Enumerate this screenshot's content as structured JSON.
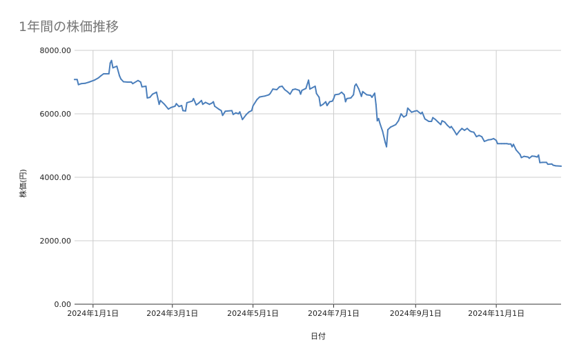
{
  "chart_data": {
    "type": "line",
    "title": "1年間の株価推移",
    "xlabel": "日付",
    "ylabel": "株価(円)",
    "ylim": [
      0,
      8000
    ],
    "yticks": [
      "0.00",
      "2000.00",
      "4000.00",
      "6000.00",
      "8000.00"
    ],
    "xlim": [
      "2023-12-18",
      "2024-12-20"
    ],
    "xticks": [
      {
        "date": "2024-01-01",
        "label": "2024年1月1日"
      },
      {
        "date": "2024-03-01",
        "label": "2024年3月1日"
      },
      {
        "date": "2024-05-01",
        "label": "2024年5月1日"
      },
      {
        "date": "2024-07-01",
        "label": "2024年7月1日"
      },
      {
        "date": "2024-09-01",
        "label": "2024年9月1日"
      },
      {
        "date": "2024-11-01",
        "label": "2024年11月1日"
      }
    ],
    "grid": true,
    "line_color": "#4a7ebb",
    "series": [
      {
        "name": "",
        "points": [
          [
            "2023-12-18",
            7080
          ],
          [
            "2023-12-20",
            7080
          ],
          [
            "2023-12-21",
            6920
          ],
          [
            "2023-12-23",
            6950
          ],
          [
            "2023-12-26",
            6960
          ],
          [
            "2023-12-29",
            7000
          ],
          [
            "2024-01-02",
            7060
          ],
          [
            "2024-01-05",
            7130
          ],
          [
            "2024-01-07",
            7200
          ],
          [
            "2024-01-09",
            7260
          ],
          [
            "2024-01-13",
            7260
          ],
          [
            "2024-01-14",
            7600
          ],
          [
            "2024-01-15",
            7680
          ],
          [
            "2024-01-16",
            7450
          ],
          [
            "2024-01-19",
            7500
          ],
          [
            "2024-01-21",
            7200
          ],
          [
            "2024-01-22",
            7100
          ],
          [
            "2024-01-24",
            7010
          ],
          [
            "2024-01-27",
            7000
          ],
          [
            "2024-01-30",
            7000
          ],
          [
            "2024-01-31",
            6950
          ],
          [
            "2024-02-04",
            7050
          ],
          [
            "2024-02-06",
            7000
          ],
          [
            "2024-02-07",
            6850
          ],
          [
            "2024-02-10",
            6870
          ],
          [
            "2024-02-11",
            6500
          ],
          [
            "2024-02-13",
            6520
          ],
          [
            "2024-02-15",
            6620
          ],
          [
            "2024-02-18",
            6680
          ],
          [
            "2024-02-20",
            6300
          ],
          [
            "2024-02-21",
            6420
          ],
          [
            "2024-02-24",
            6300
          ],
          [
            "2024-02-27",
            6150
          ],
          [
            "2024-02-29",
            6200
          ],
          [
            "2024-03-03",
            6240
          ],
          [
            "2024-03-04",
            6320
          ],
          [
            "2024-03-06",
            6230
          ],
          [
            "2024-03-08",
            6260
          ],
          [
            "2024-03-09",
            6100
          ],
          [
            "2024-03-11",
            6090
          ],
          [
            "2024-03-12",
            6350
          ],
          [
            "2024-03-16",
            6400
          ],
          [
            "2024-03-17",
            6480
          ],
          [
            "2024-03-19",
            6280
          ],
          [
            "2024-03-21",
            6340
          ],
          [
            "2024-03-23",
            6420
          ],
          [
            "2024-03-24",
            6300
          ],
          [
            "2024-03-26",
            6360
          ],
          [
            "2024-03-29",
            6300
          ],
          [
            "2024-03-31",
            6340
          ],
          [
            "2024-04-01",
            6380
          ],
          [
            "2024-04-02",
            6240
          ],
          [
            "2024-04-05",
            6150
          ],
          [
            "2024-04-07",
            6100
          ],
          [
            "2024-04-08",
            5950
          ],
          [
            "2024-04-10",
            6080
          ],
          [
            "2024-04-15",
            6100
          ],
          [
            "2024-04-16",
            5980
          ],
          [
            "2024-04-18",
            6030
          ],
          [
            "2024-04-20",
            6000
          ],
          [
            "2024-04-21",
            6060
          ],
          [
            "2024-04-23",
            5820
          ],
          [
            "2024-04-26",
            5980
          ],
          [
            "2024-04-28",
            6060
          ],
          [
            "2024-04-30",
            6100
          ],
          [
            "2024-05-01",
            6250
          ],
          [
            "2024-05-04",
            6450
          ],
          [
            "2024-05-06",
            6530
          ],
          [
            "2024-05-10",
            6560
          ],
          [
            "2024-05-13",
            6600
          ],
          [
            "2024-05-14",
            6640
          ],
          [
            "2024-05-16",
            6780
          ],
          [
            "2024-05-19",
            6760
          ],
          [
            "2024-05-21",
            6850
          ],
          [
            "2024-05-23",
            6870
          ],
          [
            "2024-05-25",
            6760
          ],
          [
            "2024-05-27",
            6700
          ],
          [
            "2024-05-29",
            6620
          ],
          [
            "2024-05-31",
            6760
          ],
          [
            "2024-06-02",
            6780
          ],
          [
            "2024-06-05",
            6740
          ],
          [
            "2024-06-06",
            6620
          ],
          [
            "2024-06-07",
            6740
          ],
          [
            "2024-06-10",
            6800
          ],
          [
            "2024-06-12",
            7060
          ],
          [
            "2024-06-13",
            6780
          ],
          [
            "2024-06-17",
            6870
          ],
          [
            "2024-06-18",
            6640
          ],
          [
            "2024-06-20",
            6520
          ],
          [
            "2024-06-21",
            6250
          ],
          [
            "2024-06-23",
            6300
          ],
          [
            "2024-06-25",
            6380
          ],
          [
            "2024-06-26",
            6260
          ],
          [
            "2024-06-28",
            6380
          ],
          [
            "2024-06-30",
            6400
          ],
          [
            "2024-07-01",
            6480
          ],
          [
            "2024-07-02",
            6600
          ],
          [
            "2024-07-05",
            6620
          ],
          [
            "2024-07-07",
            6680
          ],
          [
            "2024-07-09",
            6600
          ],
          [
            "2024-07-10",
            6380
          ],
          [
            "2024-07-11",
            6480
          ],
          [
            "2024-07-14",
            6500
          ],
          [
            "2024-07-16",
            6600
          ],
          [
            "2024-07-17",
            6880
          ],
          [
            "2024-07-18",
            6940
          ],
          [
            "2024-07-20",
            6780
          ],
          [
            "2024-07-22",
            6550
          ],
          [
            "2024-07-23",
            6700
          ],
          [
            "2024-07-26",
            6600
          ],
          [
            "2024-07-29",
            6580
          ],
          [
            "2024-07-30",
            6520
          ],
          [
            "2024-08-01",
            6650
          ],
          [
            "2024-08-02",
            6300
          ],
          [
            "2024-08-03",
            5780
          ],
          [
            "2024-08-04",
            5850
          ],
          [
            "2024-08-05",
            5700
          ],
          [
            "2024-08-07",
            5450
          ],
          [
            "2024-08-09",
            5100
          ],
          [
            "2024-08-10",
            4960
          ],
          [
            "2024-08-11",
            5500
          ],
          [
            "2024-08-13",
            5580
          ],
          [
            "2024-08-15",
            5620
          ],
          [
            "2024-08-17",
            5660
          ],
          [
            "2024-08-19",
            5780
          ],
          [
            "2024-08-21",
            6000
          ],
          [
            "2024-08-23",
            5900
          ],
          [
            "2024-08-25",
            5950
          ],
          [
            "2024-08-26",
            6180
          ],
          [
            "2024-08-29",
            6050
          ],
          [
            "2024-08-31",
            6080
          ],
          [
            "2024-09-02",
            6100
          ],
          [
            "2024-09-05",
            6000
          ],
          [
            "2024-09-06",
            6050
          ],
          [
            "2024-09-08",
            5840
          ],
          [
            "2024-09-11",
            5760
          ],
          [
            "2024-09-13",
            5760
          ],
          [
            "2024-09-14",
            5880
          ],
          [
            "2024-09-16",
            5820
          ],
          [
            "2024-09-18",
            5740
          ],
          [
            "2024-09-20",
            5660
          ],
          [
            "2024-09-21",
            5780
          ],
          [
            "2024-09-23",
            5740
          ],
          [
            "2024-09-25",
            5640
          ],
          [
            "2024-09-27",
            5560
          ],
          [
            "2024-09-28",
            5600
          ],
          [
            "2024-09-30",
            5480
          ],
          [
            "2024-10-02",
            5340
          ],
          [
            "2024-10-04",
            5450
          ],
          [
            "2024-10-06",
            5540
          ],
          [
            "2024-10-08",
            5480
          ],
          [
            "2024-10-10",
            5540
          ],
          [
            "2024-10-12",
            5460
          ],
          [
            "2024-10-13",
            5440
          ],
          [
            "2024-10-15",
            5420
          ],
          [
            "2024-10-17",
            5280
          ],
          [
            "2024-10-19",
            5320
          ],
          [
            "2024-10-21",
            5280
          ],
          [
            "2024-10-23",
            5130
          ],
          [
            "2024-10-26",
            5180
          ],
          [
            "2024-10-28",
            5190
          ],
          [
            "2024-10-30",
            5220
          ],
          [
            "2024-11-01",
            5160
          ],
          [
            "2024-11-02",
            5060
          ],
          [
            "2024-11-05",
            5060
          ],
          [
            "2024-11-07",
            5060
          ],
          [
            "2024-11-09",
            5060
          ],
          [
            "2024-11-10",
            5050
          ],
          [
            "2024-11-12",
            5050
          ],
          [
            "2024-11-13",
            4960
          ],
          [
            "2024-11-14",
            5040
          ],
          [
            "2024-11-16",
            4860
          ],
          [
            "2024-11-19",
            4720
          ],
          [
            "2024-11-20",
            4620
          ],
          [
            "2024-11-22",
            4660
          ],
          [
            "2024-11-25",
            4640
          ],
          [
            "2024-11-26",
            4600
          ],
          [
            "2024-11-28",
            4670
          ],
          [
            "2024-11-30",
            4660
          ],
          [
            "2024-12-02",
            4640
          ],
          [
            "2024-12-03",
            4700
          ],
          [
            "2024-12-04",
            4460
          ],
          [
            "2024-12-06",
            4470
          ],
          [
            "2024-12-09",
            4470
          ],
          [
            "2024-12-10",
            4410
          ],
          [
            "2024-12-13",
            4420
          ],
          [
            "2024-12-14",
            4380
          ],
          [
            "2024-12-16",
            4360
          ],
          [
            "2024-12-20",
            4350
          ]
        ]
      }
    ]
  }
}
